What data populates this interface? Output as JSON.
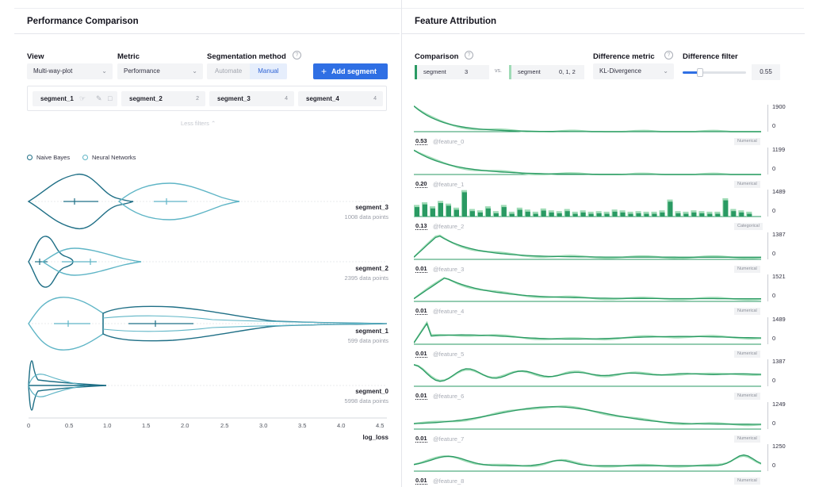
{
  "left": {
    "title": "Performance Comparison",
    "view": {
      "label": "View",
      "value": "Multi-way-plot"
    },
    "metric": {
      "label": "Metric",
      "value": "Performance"
    },
    "segmentation": {
      "label": "Segmentation method",
      "options": [
        "Automate",
        "Manual"
      ],
      "selected": "Manual"
    },
    "add_segment_label": "Add segment",
    "segments": [
      {
        "name": "segment_1",
        "count": ""
      },
      {
        "name": "segment_2",
        "count": "2"
      },
      {
        "name": "segment_3",
        "count": "4"
      },
      {
        "name": "segment_4",
        "count": "4"
      }
    ],
    "less_filters": "Less filters",
    "legend": [
      {
        "label": "Naive Bayes",
        "color": "#1f6f86"
      },
      {
        "label": "Neural Networks",
        "color": "#5fb5c6"
      }
    ],
    "plot_rows": [
      {
        "name": "segment_3",
        "points": "1008 data points"
      },
      {
        "name": "segment_2",
        "points": "2395 data points"
      },
      {
        "name": "segment_1",
        "points": "599 data points"
      },
      {
        "name": "segment_0",
        "points": "5998 data points"
      }
    ],
    "x_ticks": [
      "0",
      "0.5",
      "1.0",
      "1.5",
      "2.0",
      "2.5",
      "3.0",
      "3.5",
      "4.0",
      "4.5"
    ],
    "x_label": "log_loss"
  },
  "right": {
    "title": "Feature Attribution",
    "comparison_label": "Comparison",
    "compare_a": {
      "name": "segment",
      "value": "3"
    },
    "vs_label": "vs.",
    "compare_b": {
      "name": "segment",
      "value": "0, 1, 2"
    },
    "diff_metric": {
      "label": "Difference metric",
      "value": "KL-Divergence"
    },
    "diff_filter": {
      "label": "Difference filter",
      "value": "0.55",
      "level": 0.28
    },
    "colors": {
      "seg_a": "#2a9a63",
      "seg_b": "#9fdbb6"
    },
    "features": [
      {
        "score": "0.53",
        "name": "@feature_0",
        "type": "Numerical",
        "max": "1900",
        "zero": "0",
        "shape": "decay"
      },
      {
        "score": "0.20",
        "name": "@feature_1",
        "type": "Numerical",
        "max": "1199",
        "zero": "0",
        "shape": "decay2"
      },
      {
        "score": "0.13",
        "name": "@feature_2",
        "type": "Categorical",
        "max": "1489",
        "zero": "0",
        "shape": "bars"
      },
      {
        "score": "0.01",
        "name": "@feature_3",
        "type": "Numerical",
        "max": "1387",
        "zero": "0",
        "shape": "peak"
      },
      {
        "score": "0.01",
        "name": "@feature_4",
        "type": "Numerical",
        "max": "1521",
        "zero": "0",
        "shape": "peak2"
      },
      {
        "score": "0.01",
        "name": "@feature_5",
        "type": "Numerical",
        "max": "1489",
        "zero": "0",
        "shape": "wave"
      },
      {
        "score": "0.01",
        "name": "@feature_6",
        "type": "Numerical",
        "max": "1387",
        "zero": "0",
        "shape": "oscill"
      },
      {
        "score": "0.01",
        "name": "@feature_7",
        "type": "Numerical",
        "max": "1249",
        "zero": "0",
        "shape": "hump"
      },
      {
        "score": "0.01",
        "name": "@feature_8",
        "type": "Numerical",
        "max": "1250",
        "zero": "0",
        "shape": "bumps"
      }
    ]
  }
}
